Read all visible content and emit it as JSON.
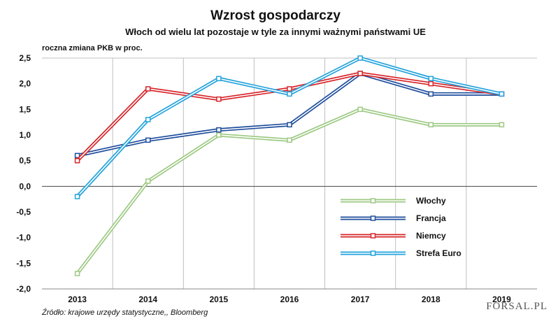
{
  "source": "Źródło: krajowe urzędy statystyczne,, Bloomberg",
  "logo": "FORSAL.PL",
  "chart_data": {
    "type": "line",
    "title": "Wzrost gospodarczy",
    "subtitle": "Włoch od wielu lat pozostaje w tyle za innymi ważnymi państwami UE",
    "ylabel": "roczna zmiana PKB w proc.",
    "xlabel": "",
    "x": [
      "2013",
      "2014",
      "2015",
      "2016",
      "2017",
      "2018",
      "2019"
    ],
    "ylim": [
      -2.0,
      2.5
    ],
    "yticks": [
      "2,5",
      "2,0",
      "1,5",
      "1,0",
      "0,5",
      "0,0",
      "-0,5",
      "-1,0",
      "-1,5",
      "-2,0"
    ],
    "grid": "vertical",
    "legend_position": "bottom-right",
    "series": [
      {
        "name": "Włochy",
        "color": "#9dc983",
        "values": [
          -1.7,
          0.1,
          1.0,
          0.9,
          1.5,
          1.2,
          1.2
        ]
      },
      {
        "name": "Francja",
        "color": "#1f4e9c",
        "values": [
          0.6,
          0.9,
          1.1,
          1.2,
          2.2,
          1.8,
          1.8
        ]
      },
      {
        "name": "Niemcy",
        "color": "#d7262b",
        "values": [
          0.5,
          1.9,
          1.7,
          1.9,
          2.2,
          2.0,
          1.8
        ]
      },
      {
        "name": "Strefa Euro",
        "color": "#24a3dc",
        "values": [
          -0.2,
          1.3,
          2.1,
          1.8,
          2.5,
          2.1,
          1.8
        ]
      }
    ]
  }
}
